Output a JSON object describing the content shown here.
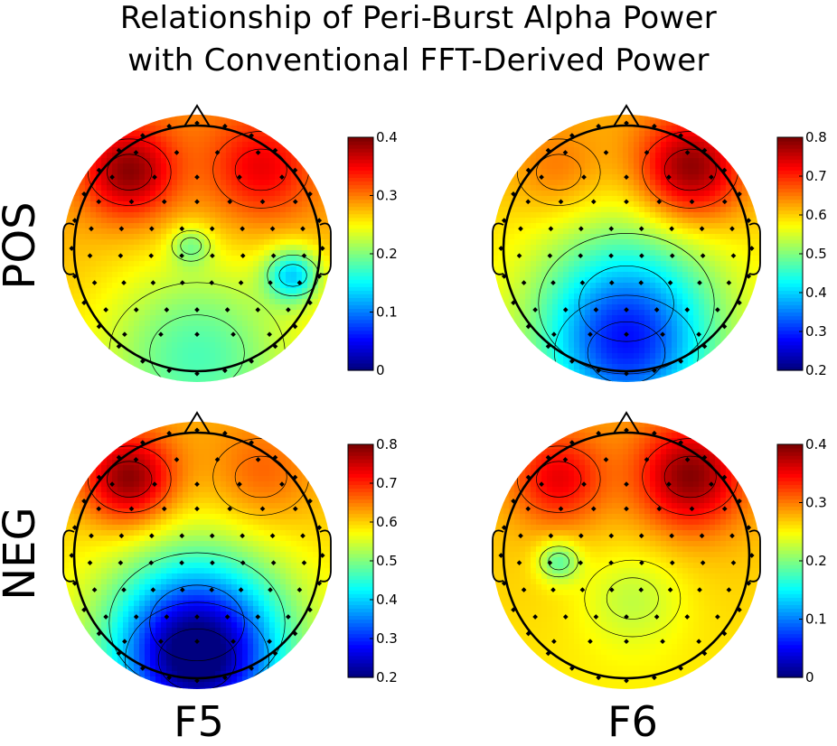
{
  "figure": {
    "title_line1": "Relationship of Peri-Burst Alpha Power",
    "title_line2": "with Conventional FFT-Derived Power",
    "row_labels": [
      "POS",
      "NEG"
    ],
    "column_labels": [
      "F5",
      "F6"
    ]
  },
  "colors": {
    "colormap": "jet",
    "contour_lines": "#000000",
    "electrodes": "#000000",
    "background": "#ffffff"
  },
  "chart_data": [
    {
      "type": "heatmap",
      "subtype": "scalp-topography",
      "row": "POS",
      "column": "F5",
      "title": "",
      "xlabel": "",
      "ylabel": "",
      "colorbar": {
        "range": [
          0,
          0.4
        ],
        "ticks": [
          0,
          0.1,
          0.2,
          0.3,
          0.4
        ],
        "tick_labels": [
          "0",
          "0.1",
          "0.2",
          "0.3",
          "0.4"
        ]
      },
      "baseline": 0.28,
      "hotspots": [
        {
          "region": "left frontal",
          "value": 0.39
        },
        {
          "region": "right frontal",
          "value": 0.35
        },
        {
          "region": "posterior / occipital",
          "value": 0.19
        },
        {
          "region": "right temporal",
          "value": 0.15
        },
        {
          "region": "central midline",
          "value": 0.22
        }
      ]
    },
    {
      "type": "heatmap",
      "subtype": "scalp-topography",
      "row": "POS",
      "column": "F6",
      "title": "",
      "xlabel": "",
      "ylabel": "",
      "colorbar": {
        "range": [
          0.2,
          0.8
        ],
        "ticks": [
          0.2,
          0.3,
          0.4,
          0.5,
          0.6,
          0.7,
          0.8
        ],
        "tick_labels": [
          "0.2",
          "0.3",
          "0.4",
          "0.5",
          "0.6",
          "0.7",
          "0.8"
        ]
      },
      "baseline": 0.6,
      "hotspots": [
        {
          "region": "right frontal",
          "value": 0.79
        },
        {
          "region": "left frontal",
          "value": 0.65
        },
        {
          "region": "parietal",
          "value": 0.45
        },
        {
          "region": "occipital",
          "value": 0.42
        }
      ]
    },
    {
      "type": "heatmap",
      "subtype": "scalp-topography",
      "row": "NEG",
      "column": "F5",
      "title": "",
      "xlabel": "",
      "ylabel": "",
      "colorbar": {
        "range": [
          0.2,
          0.8
        ],
        "ticks": [
          0.2,
          0.3,
          0.4,
          0.5,
          0.6,
          0.7,
          0.8
        ],
        "tick_labels": [
          "0.2",
          "0.3",
          "0.4",
          "0.5",
          "0.6",
          "0.7",
          "0.8"
        ]
      },
      "baseline": 0.6,
      "hotspots": [
        {
          "region": "left frontal",
          "value": 0.79
        },
        {
          "region": "right frontal",
          "value": 0.66
        },
        {
          "region": "posterior",
          "value": 0.46
        },
        {
          "region": "occipital",
          "value": 0.3
        }
      ]
    },
    {
      "type": "heatmap",
      "subtype": "scalp-topography",
      "row": "NEG",
      "column": "F6",
      "title": "",
      "xlabel": "",
      "ylabel": "",
      "colorbar": {
        "range": [
          0,
          0.4
        ],
        "ticks": [
          0,
          0.1,
          0.2,
          0.3,
          0.4
        ],
        "tick_labels": [
          "0",
          "0.1",
          "0.2",
          "0.3",
          "0.4"
        ]
      },
      "baseline": 0.27,
      "hotspots": [
        {
          "region": "right frontal",
          "value": 0.39
        },
        {
          "region": "left frontal",
          "value": 0.35
        },
        {
          "region": "left central",
          "value": 0.19
        },
        {
          "region": "central-posterior",
          "value": 0.23
        }
      ]
    }
  ]
}
